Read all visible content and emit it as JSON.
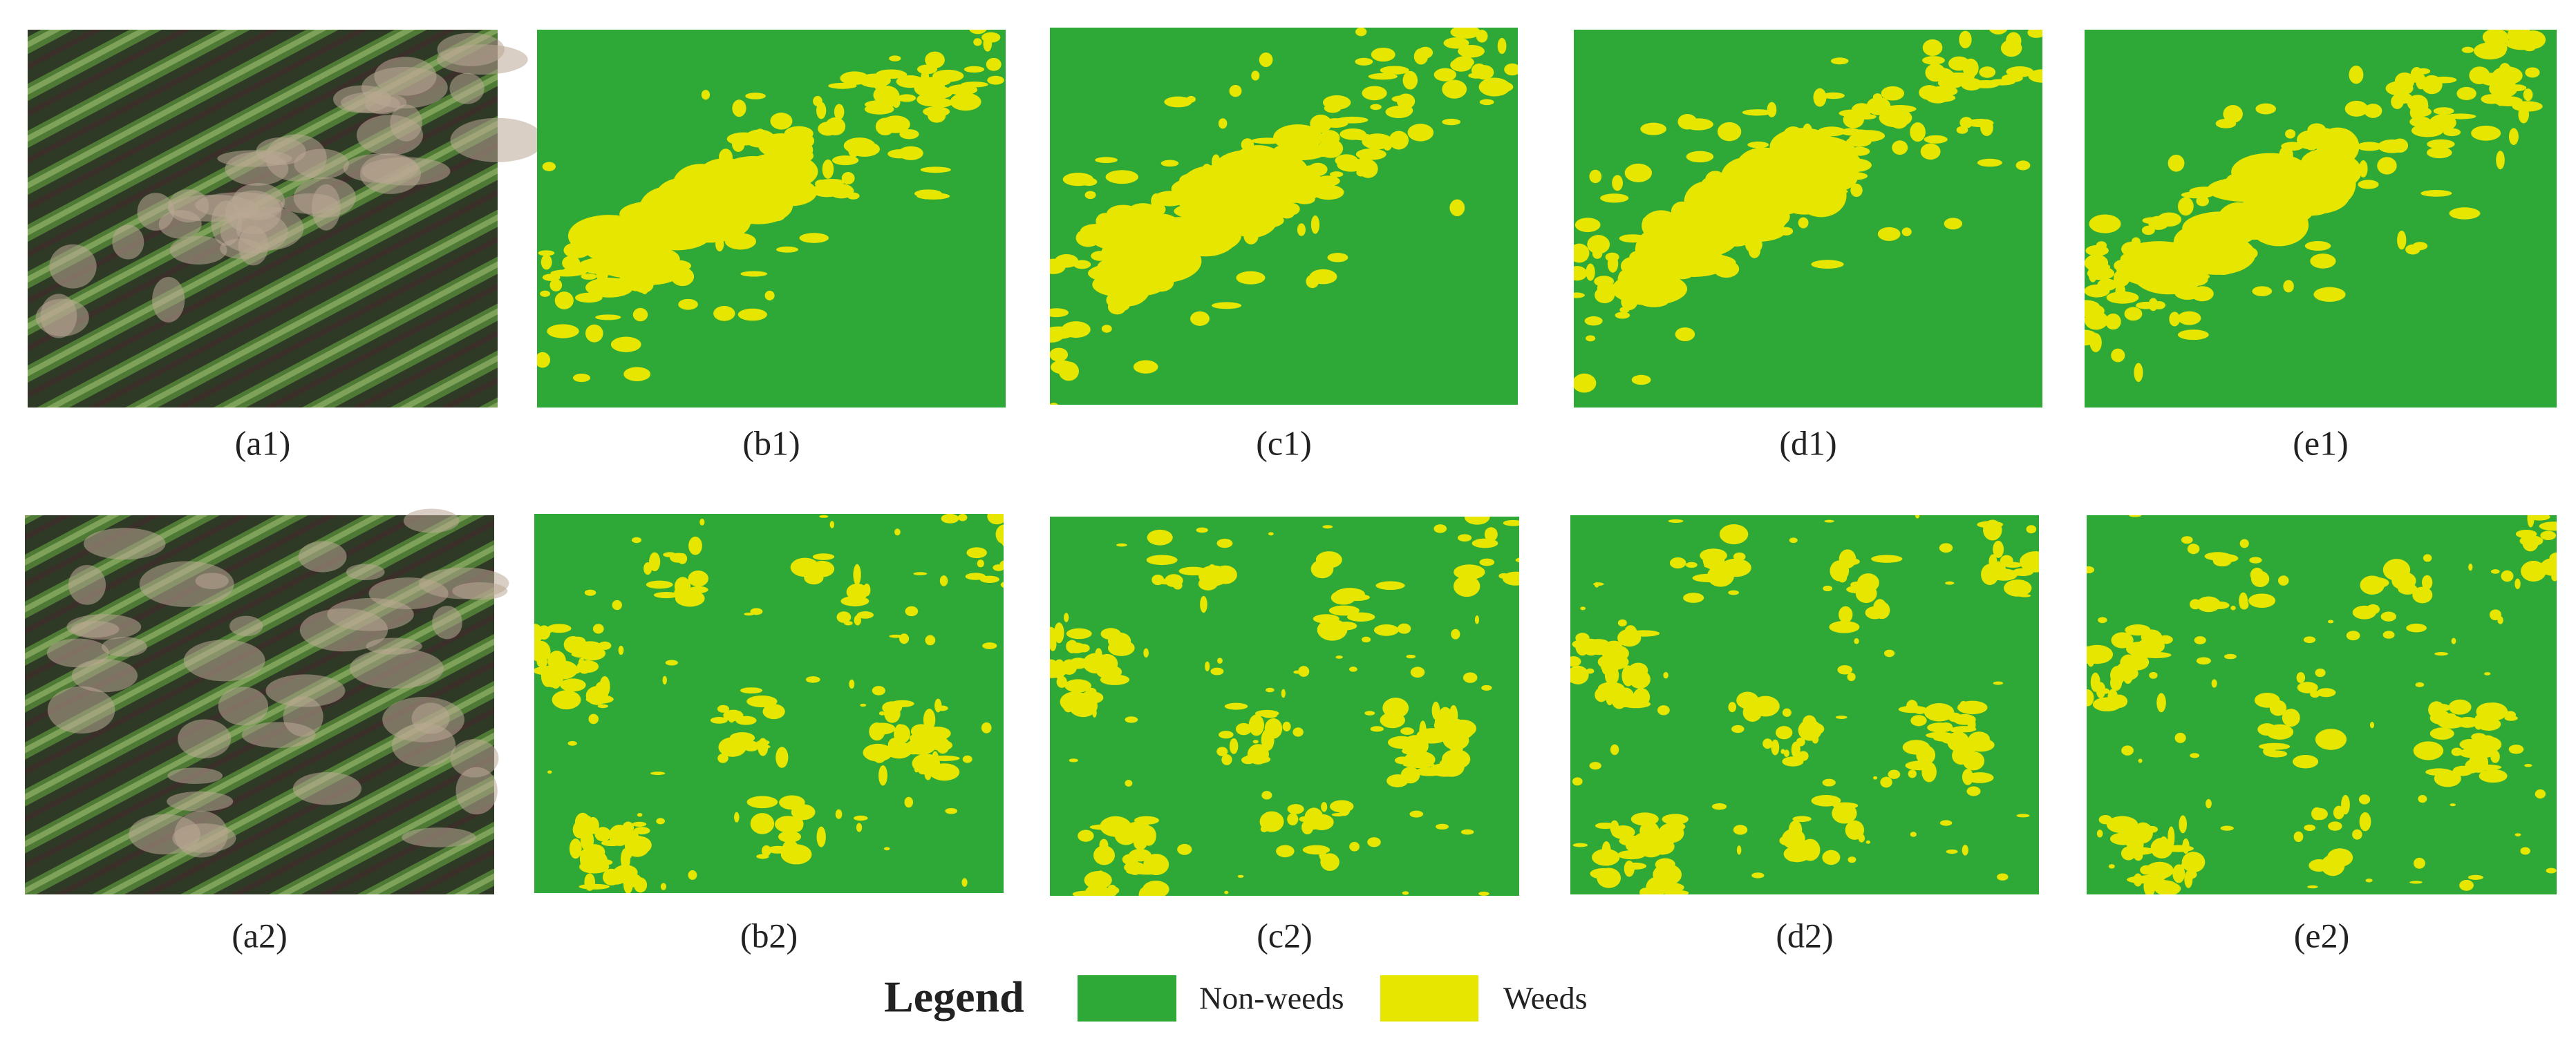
{
  "panels": [
    {
      "label": "(a1)"
    },
    {
      "label": "(b1)"
    },
    {
      "label": "(c1)"
    },
    {
      "label": "(d1)"
    },
    {
      "label": "(e1)"
    },
    {
      "label": "(a2)"
    },
    {
      "label": "(b2)"
    },
    {
      "label": "(c2)"
    },
    {
      "label": "(d2)"
    },
    {
      "label": "(e2)"
    }
  ],
  "legend": {
    "title": "Legend",
    "items": [
      {
        "label": "Non-weeds"
      },
      {
        "label": "Weeds"
      }
    ]
  }
}
